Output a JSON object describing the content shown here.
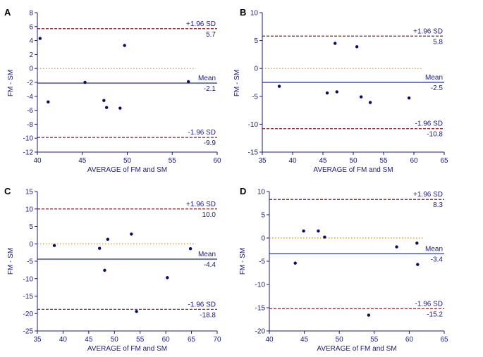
{
  "colors": {
    "axis": "#1a1a7a",
    "points": "#0a0a6e",
    "mean_line": "#1f2f9f",
    "limit_line": "#8b1a1a",
    "zero_line": "#e08a1e"
  },
  "chart_data": [
    {
      "type": "scatter",
      "panel": "A",
      "xlabel": "AVERAGE of FM and SM",
      "ylabel": "FM - SM",
      "xlim": [
        40,
        60
      ],
      "ylim": [
        -12,
        8
      ],
      "xticks": [
        40,
        45,
        50,
        55,
        60
      ],
      "yticks": [
        -12,
        -10,
        -8,
        -6,
        -4,
        -2,
        0,
        2,
        4,
        6,
        8
      ],
      "points": [
        {
          "x": 40.3,
          "y": 4.3
        },
        {
          "x": 41.2,
          "y": -4.8
        },
        {
          "x": 45.3,
          "y": -2.0
        },
        {
          "x": 47.4,
          "y": -4.6
        },
        {
          "x": 47.7,
          "y": -5.6
        },
        {
          "x": 49.2,
          "y": -5.7
        },
        {
          "x": 49.7,
          "y": 3.3
        },
        {
          "x": 56.8,
          "y": -1.9
        }
      ],
      "upper_label": "+1.96 SD",
      "upper_value": "5.7",
      "upper": 5.7,
      "mean_label": "Mean",
      "mean_value": "-2.1",
      "mean": -2.1,
      "lower_label": "-1.96 SD",
      "lower_value": "-9.9",
      "lower": -9.9
    },
    {
      "type": "scatter",
      "panel": "B",
      "xlabel": "AVERAGE of FM and SM",
      "ylabel": "FM - SM",
      "xlim": [
        35,
        65
      ],
      "ylim": [
        -15,
        10
      ],
      "xticks": [
        35,
        40,
        45,
        50,
        55,
        60,
        65
      ],
      "yticks": [
        -15,
        -10,
        -5,
        0,
        5,
        10
      ],
      "points": [
        {
          "x": 37.8,
          "y": -3.2
        },
        {
          "x": 45.7,
          "y": -4.4
        },
        {
          "x": 47.0,
          "y": 4.5
        },
        {
          "x": 47.3,
          "y": -4.2
        },
        {
          "x": 50.6,
          "y": 3.9
        },
        {
          "x": 51.3,
          "y": -5.1
        },
        {
          "x": 52.8,
          "y": -6.1
        },
        {
          "x": 59.2,
          "y": -5.3
        }
      ],
      "upper_label": "+1.96 SD",
      "upper_value": "5.8",
      "upper": 5.8,
      "mean_label": "Mean",
      "mean_value": "-2.5",
      "mean": -2.5,
      "lower_label": "-1.96 SD",
      "lower_value": "-10.8",
      "lower": -10.8
    },
    {
      "type": "scatter",
      "panel": "C",
      "xlabel": "AVERAGE of FM and SM",
      "ylabel": "FM - SM",
      "xlim": [
        35,
        70
      ],
      "ylim": [
        -25,
        15
      ],
      "xticks": [
        35,
        40,
        45,
        50,
        55,
        60,
        65,
        70
      ],
      "yticks": [
        -25,
        -20,
        -15,
        -10,
        -5,
        0,
        5,
        10,
        15
      ],
      "points": [
        {
          "x": 38.3,
          "y": -0.5
        },
        {
          "x": 47.1,
          "y": -1.3
        },
        {
          "x": 48.1,
          "y": -7.6
        },
        {
          "x": 48.7,
          "y": 1.3
        },
        {
          "x": 53.3,
          "y": 2.8
        },
        {
          "x": 54.3,
          "y": -19.4
        },
        {
          "x": 60.3,
          "y": -9.7
        },
        {
          "x": 64.8,
          "y": -1.4
        }
      ],
      "upper_label": "+1.96 SD",
      "upper_value": "10.0",
      "upper": 10.0,
      "mean_label": "Mean",
      "mean_value": "-4.4",
      "mean": -4.4,
      "lower_label": "-1.96 SD",
      "lower_value": "-18.8",
      "lower": -18.8
    },
    {
      "type": "scatter",
      "panel": "D",
      "xlabel": "AVERAGE of FM and SM",
      "ylabel": "FM - SM",
      "xlim": [
        40,
        65
      ],
      "ylim": [
        -20,
        10
      ],
      "xticks": [
        40,
        45,
        50,
        55,
        60,
        65
      ],
      "yticks": [
        -20,
        -15,
        -10,
        -5,
        0,
        5,
        10
      ],
      "points": [
        {
          "x": 43.7,
          "y": -5.4
        },
        {
          "x": 44.9,
          "y": 1.5
        },
        {
          "x": 47.0,
          "y": 1.5
        },
        {
          "x": 47.9,
          "y": 0.2
        },
        {
          "x": 54.2,
          "y": -16.6
        },
        {
          "x": 58.2,
          "y": -1.9
        },
        {
          "x": 61.1,
          "y": -1.1
        },
        {
          "x": 61.2,
          "y": -5.7
        }
      ],
      "upper_label": "+1.96 SD",
      "upper_value": "8.3",
      "upper": 8.3,
      "mean_label": "Mean",
      "mean_value": "-3.4",
      "mean": -3.4,
      "lower_label": "-1.96 SD",
      "lower_value": "-15.2",
      "lower": -15.2
    }
  ]
}
